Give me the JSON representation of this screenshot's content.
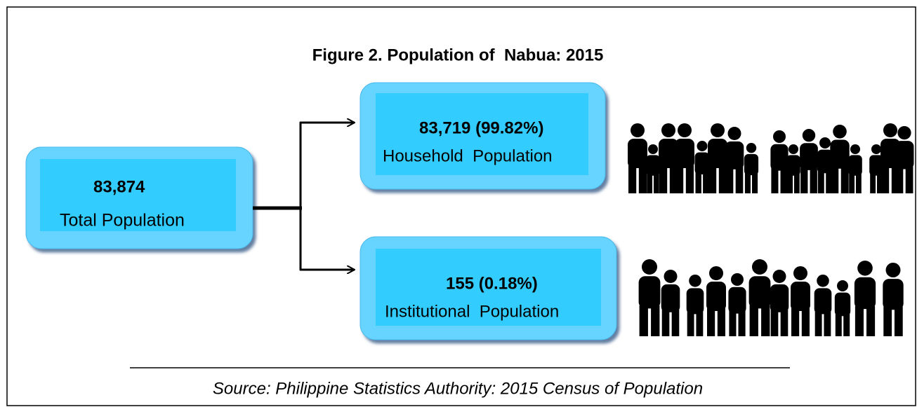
{
  "title": "Figure 2. Population of  Nabua: 2015",
  "nodes": [
    {
      "value": "83,874",
      "label": "Total Population"
    },
    {
      "value": "83,719 (99.82%)",
      "label": "Household  Population"
    },
    {
      "value": "155 (0.18%)",
      "label": "Institutional  Population"
    }
  ],
  "source": "Source: Philippine Statistics Authority: 2015 Census of Population"
}
